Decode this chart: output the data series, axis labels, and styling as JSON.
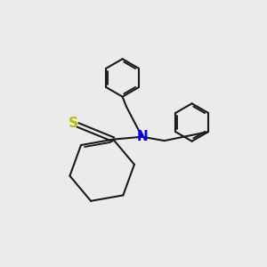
{
  "background_color": "#ebebeb",
  "bond_color": "#1a1a1a",
  "N_color": "#0000ee",
  "S_color": "#bbbb00",
  "bond_width": 1.5,
  "figsize": [
    3.0,
    3.0
  ],
  "dpi": 100
}
